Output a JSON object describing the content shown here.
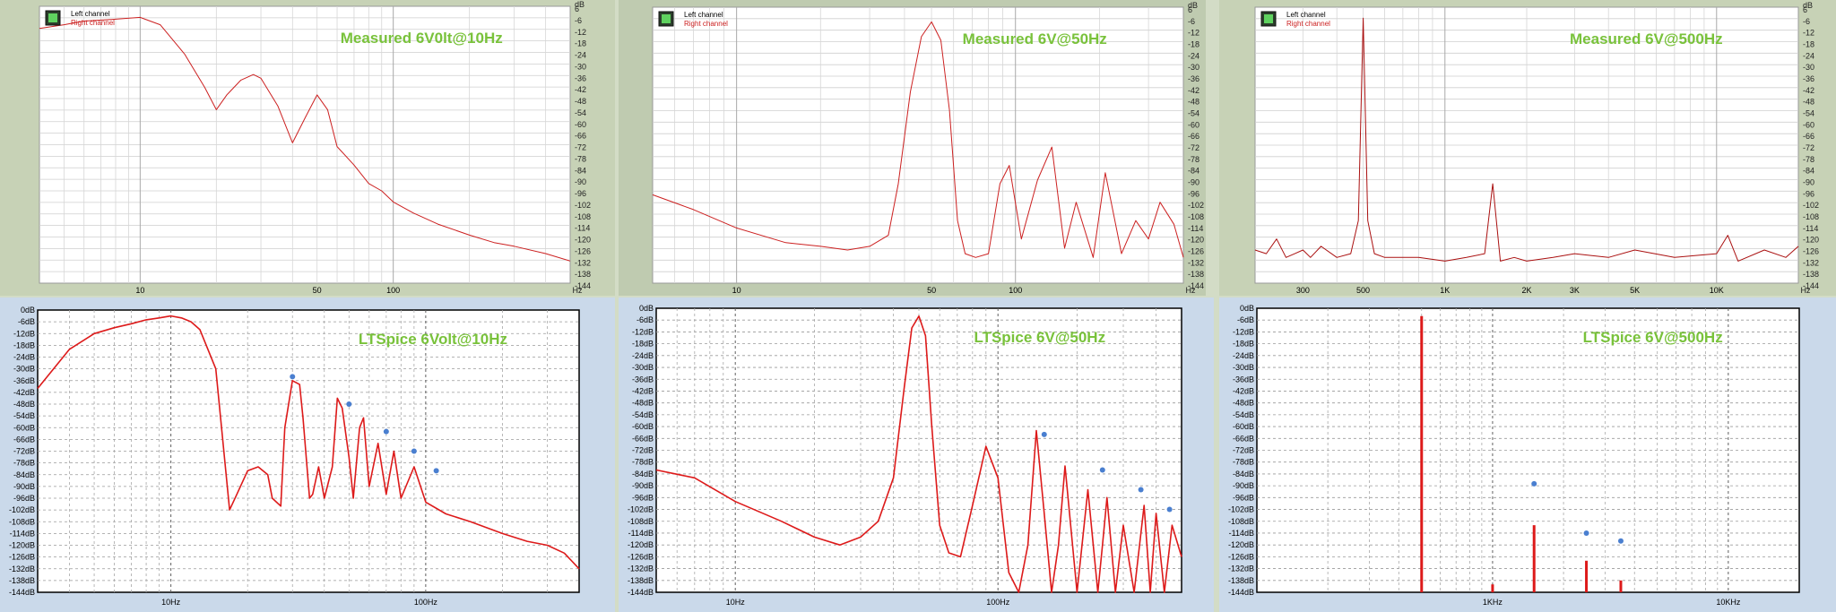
{
  "chart_data": [
    {
      "type": "line",
      "style": "measured",
      "title": "Measured 6V0lt@10Hz",
      "legend": [
        "Left channel",
        "Right channel"
      ],
      "yunit": "dB",
      "yticks": [
        "6",
        "-6",
        "-12",
        "-18",
        "-24",
        "-30",
        "-36",
        "-42",
        "-48",
        "-54",
        "-60",
        "-66",
        "-72",
        "-78",
        "-84",
        "-90",
        "-96",
        "-102",
        "-108",
        "-114",
        "-120",
        "-126",
        "-132",
        "-138",
        "-144"
      ],
      "xticks": [
        {
          "v": 10,
          "label": "10"
        },
        {
          "v": 50,
          "label": "50"
        },
        {
          "v": 100,
          "label": "100"
        }
      ],
      "xunit": "Hz",
      "xlim": [
        4,
        500
      ],
      "ylim": [
        -144,
        6
      ],
      "x_scale": "log",
      "grid": true,
      "color": "#cc2020",
      "series": [
        {
          "x": [
            4,
            5,
            6,
            8,
            10,
            12,
            15,
            18,
            20,
            22,
            25,
            28,
            30,
            35,
            40,
            45,
            50,
            55,
            60,
            70,
            80,
            90,
            100,
            120,
            150,
            200,
            250,
            300,
            400,
            500
          ],
          "y": [
            -6,
            -4,
            -2,
            -1,
            0,
            -4,
            -20,
            -38,
            -50,
            -42,
            -34,
            -31,
            -33,
            -48,
            -68,
            -54,
            -42,
            -50,
            -70,
            -80,
            -90,
            -94,
            -100,
            -106,
            -112,
            -118,
            -122,
            -124,
            -128,
            -132
          ]
        }
      ]
    },
    {
      "type": "line",
      "style": "measured",
      "title": "Measured 6V@50Hz",
      "legend": [
        "Left channel",
        "Right channel"
      ],
      "yunit": "dB",
      "yticks": [
        "6",
        "-6",
        "-12",
        "-18",
        "-24",
        "-30",
        "-36",
        "-42",
        "-48",
        "-54",
        "-60",
        "-66",
        "-72",
        "-78",
        "-84",
        "-90",
        "-96",
        "-102",
        "-108",
        "-114",
        "-120",
        "-126",
        "-132",
        "-138",
        "-144"
      ],
      "xticks": [
        {
          "v": 10,
          "label": "10"
        },
        {
          "v": 50,
          "label": "50"
        },
        {
          "v": 100,
          "label": "100"
        }
      ],
      "xunit": "Hz",
      "xlim": [
        5,
        400
      ],
      "ylim": [
        -144,
        6
      ],
      "x_scale": "log",
      "grid": true,
      "color": "#cc2020",
      "series": [
        {
          "x": [
            5,
            7,
            10,
            15,
            20,
            25,
            30,
            35,
            38,
            42,
            46,
            50,
            54,
            58,
            62,
            66,
            72,
            80,
            88,
            95,
            105,
            120,
            135,
            150,
            165,
            190,
            210,
            240,
            270,
            300,
            330,
            370,
            400
          ],
          "y": [
            -96,
            -104,
            -114,
            -122,
            -124,
            -126,
            -124,
            -118,
            -90,
            -40,
            -10,
            -2,
            -12,
            -50,
            -110,
            -128,
            -130,
            -128,
            -90,
            -80,
            -120,
            -88,
            -70,
            -125,
            -100,
            -130,
            -84,
            -128,
            -110,
            -120,
            -100,
            -112,
            -130
          ]
        }
      ]
    },
    {
      "type": "line",
      "style": "measured",
      "title": "Measured 6V@500Hz",
      "legend": [
        "Left channel",
        "Right channel"
      ],
      "yunit": "dB",
      "yticks": [
        "6",
        "-6",
        "-12",
        "-18",
        "-24",
        "-30",
        "-36",
        "-42",
        "-48",
        "-54",
        "-60",
        "-66",
        "-72",
        "-78",
        "-84",
        "-90",
        "-96",
        "-102",
        "-108",
        "-114",
        "-120",
        "-126",
        "-132",
        "-138",
        "-144"
      ],
      "xticks": [
        {
          "v": 300,
          "label": "300"
        },
        {
          "v": 500,
          "label": "500"
        },
        {
          "v": 1000,
          "label": "1K"
        },
        {
          "v": 2000,
          "label": "2K"
        },
        {
          "v": 3000,
          "label": "3K"
        },
        {
          "v": 5000,
          "label": "5K"
        },
        {
          "v": 10000,
          "label": "10K"
        }
      ],
      "xunit": "Hz",
      "xlim": [
        200,
        20000
      ],
      "ylim": [
        -144,
        6
      ],
      "x_scale": "log",
      "grid": true,
      "color": "#aa1010",
      "series": [
        {
          "x": [
            200,
            220,
            240,
            260,
            280,
            300,
            320,
            350,
            400,
            450,
            480,
            500,
            520,
            550,
            600,
            700,
            800,
            1000,
            1200,
            1400,
            1500,
            1600,
            1800,
            2000,
            2500,
            3000,
            4000,
            5000,
            7000,
            10000,
            11000,
            12000,
            15000,
            18000,
            20000
          ],
          "y": [
            -126,
            -128,
            -120,
            -130,
            -128,
            -126,
            -130,
            -124,
            -130,
            -128,
            -110,
            0,
            -110,
            -128,
            -130,
            -130,
            -130,
            -132,
            -130,
            -128,
            -90,
            -132,
            -130,
            -132,
            -130,
            -128,
            -130,
            -126,
            -130,
            -128,
            -118,
            -132,
            -126,
            -130,
            -124
          ]
        }
      ]
    },
    {
      "type": "line",
      "style": "ltspice",
      "title": "LTSpice 6Volt@10Hz",
      "yunit": "dB",
      "yticks": [
        "0dB",
        "-6dB",
        "-12dB",
        "-18dB",
        "-24dB",
        "-30dB",
        "-36dB",
        "-42dB",
        "-48dB",
        "-54dB",
        "-60dB",
        "-66dB",
        "-72dB",
        "-78dB",
        "-84dB",
        "-90dB",
        "-96dB",
        "-102dB",
        "-108dB",
        "-114dB",
        "-120dB",
        "-126dB",
        "-132dB",
        "-138dB",
        "-144dB"
      ],
      "xticks": [
        {
          "v": 10,
          "label": "10Hz"
        },
        {
          "v": 100,
          "label": "100Hz"
        }
      ],
      "xlim": [
        3,
        400
      ],
      "ylim": [
        -144,
        0
      ],
      "x_scale": "log",
      "grid": true,
      "color": "#dd1a1a",
      "series": [
        {
          "x": [
            3,
            4,
            5,
            6,
            7,
            8,
            9,
            10,
            11,
            12,
            13,
            15,
            17,
            18,
            20,
            22,
            24,
            25,
            27,
            28,
            30,
            32,
            33,
            35,
            36,
            38,
            40,
            43,
            45,
            47,
            50,
            52,
            55,
            57,
            60,
            65,
            70,
            75,
            80,
            90,
            100,
            120,
            150,
            200,
            250,
            300,
            350,
            400
          ],
          "y": [
            -40,
            -20,
            -12,
            -9,
            -7,
            -5,
            -4,
            -3,
            -4,
            -6,
            -10,
            -30,
            -102,
            -95,
            -82,
            -80,
            -84,
            -96,
            -100,
            -60,
            -36,
            -38,
            -55,
            -96,
            -94,
            -80,
            -96,
            -80,
            -45,
            -50,
            -75,
            -96,
            -60,
            -55,
            -90,
            -68,
            -94,
            -72,
            -96,
            -80,
            -98,
            -104,
            -108,
            -114,
            -118,
            -120,
            -124,
            -132
          ]
        }
      ],
      "markers": {
        "x": [
          30,
          50,
          70,
          90,
          110
        ],
        "y": [
          -34,
          -48,
          -62,
          -72,
          -82
        ],
        "color": "#4a7fd0"
      }
    },
    {
      "type": "line",
      "style": "ltspice",
      "title": "LTSpice 6V@50Hz",
      "yunit": "dB",
      "yticks": [
        "0dB",
        "-6dB",
        "-12dB",
        "-18dB",
        "-24dB",
        "-30dB",
        "-36dB",
        "-42dB",
        "-48dB",
        "-54dB",
        "-60dB",
        "-66dB",
        "-72dB",
        "-78dB",
        "-84dB",
        "-90dB",
        "-96dB",
        "-102dB",
        "-108dB",
        "-114dB",
        "-120dB",
        "-126dB",
        "-132dB",
        "-138dB",
        "-144dB"
      ],
      "xticks": [
        {
          "v": 10,
          "label": "10Hz"
        },
        {
          "v": 100,
          "label": "100Hz"
        }
      ],
      "xlim": [
        5,
        500
      ],
      "ylim": [
        -144,
        0
      ],
      "x_scale": "log",
      "grid": true,
      "color": "#dd1a1a",
      "series": [
        {
          "x": [
            5,
            7,
            10,
            15,
            20,
            25,
            30,
            35,
            40,
            44,
            47,
            50,
            53,
            56,
            60,
            65,
            72,
            80,
            90,
            100,
            110,
            120,
            130,
            140,
            150,
            160,
            170,
            180,
            200,
            220,
            240,
            250,
            260,
            280,
            300,
            330,
            360,
            380,
            400,
            430,
            460,
            500
          ],
          "y": [
            -82,
            -86,
            -98,
            -108,
            -116,
            -120,
            -116,
            -108,
            -86,
            -40,
            -10,
            -4,
            -14,
            -60,
            -110,
            -124,
            -126,
            -100,
            -70,
            -86,
            -134,
            -144,
            -120,
            -62,
            -104,
            -144,
            -120,
            -80,
            -144,
            -92,
            -144,
            -120,
            -96,
            -144,
            -110,
            -144,
            -100,
            -144,
            -104,
            -144,
            -110,
            -126
          ]
        }
      ],
      "markers": {
        "x": [
          150,
          250,
          350,
          450
        ],
        "y": [
          -64,
          -82,
          -92,
          -102
        ],
        "color": "#4a7fd0"
      }
    },
    {
      "type": "line",
      "style": "ltspice",
      "title": "LTSpice 6V@500Hz",
      "yunit": "dB",
      "yticks": [
        "0dB",
        "-6dB",
        "-12dB",
        "-18dB",
        "-24dB",
        "-30dB",
        "-36dB",
        "-42dB",
        "-48dB",
        "-54dB",
        "-60dB",
        "-66dB",
        "-72dB",
        "-78dB",
        "-84dB",
        "-90dB",
        "-96dB",
        "-102dB",
        "-108dB",
        "-114dB",
        "-120dB",
        "-126dB",
        "-132dB",
        "-138dB",
        "-144dB"
      ],
      "xticks": [
        {
          "v": 1000,
          "label": "1KHz"
        },
        {
          "v": 10000,
          "label": "10KHz"
        }
      ],
      "xlim": [
        100,
        20000
      ],
      "ylim": [
        -144,
        0
      ],
      "x_scale": "log",
      "grid": true,
      "color": "#dd1a1a",
      "spikes": [
        {
          "x": 500,
          "y": -4
        },
        {
          "x": 1000,
          "y": -140
        },
        {
          "x": 1500,
          "y": -110
        },
        {
          "x": 2500,
          "y": -128
        },
        {
          "x": 3500,
          "y": -138
        }
      ],
      "markers": {
        "x": [
          1500,
          2500,
          3500
        ],
        "y": [
          -89,
          -114,
          -118
        ],
        "color": "#4a7fd0"
      }
    }
  ]
}
